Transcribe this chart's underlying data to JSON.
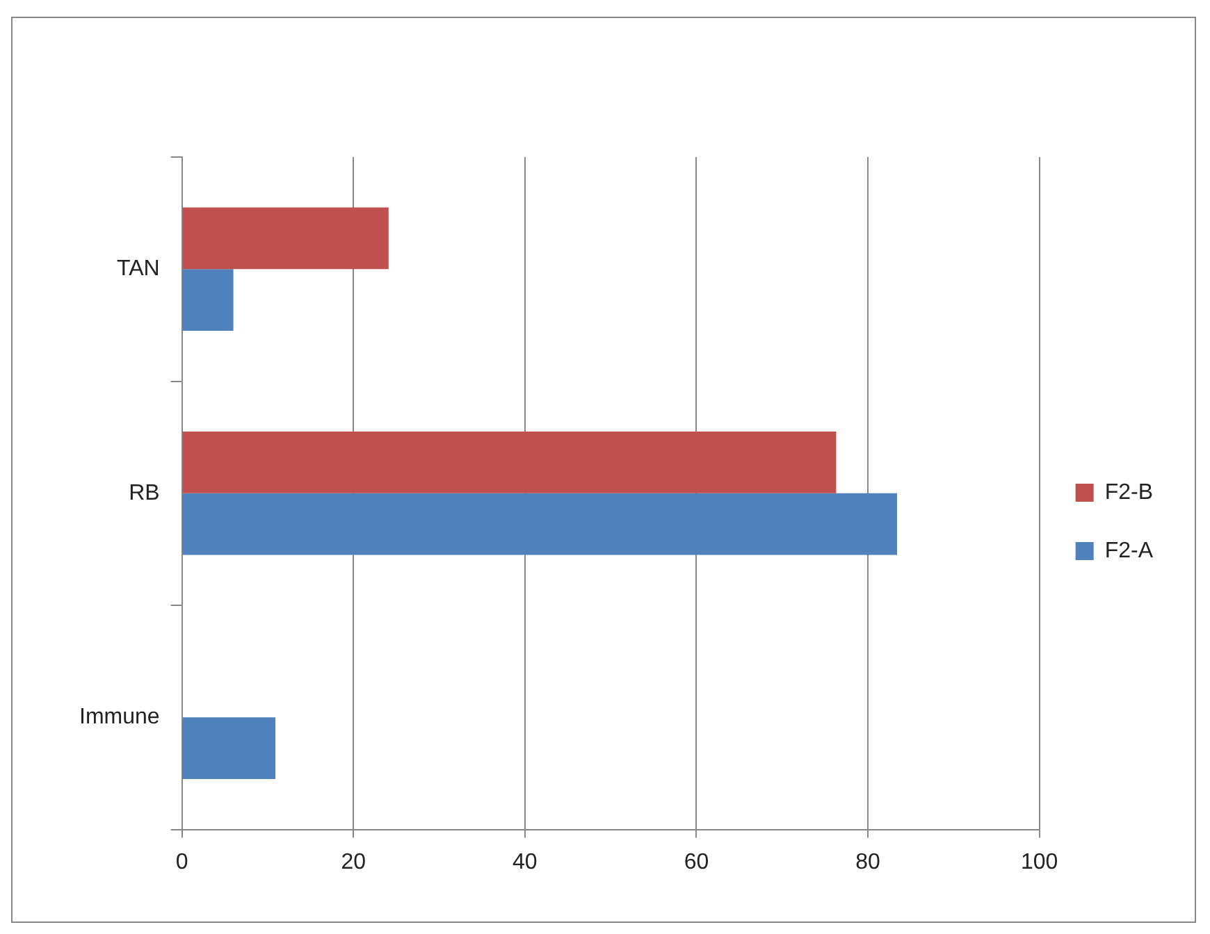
{
  "chart_data": {
    "type": "bar",
    "orientation": "horizontal",
    "categories": [
      "TAN",
      "RB",
      "Immune"
    ],
    "series": [
      {
        "name": "F2-B",
        "color": "#c0504d",
        "values": [
          24.1,
          76.3,
          null
        ]
      },
      {
        "name": "F2-A",
        "color": "#4f81bd",
        "values": [
          6.0,
          83.4,
          10.9
        ]
      }
    ],
    "xlim": [
      0,
      100
    ],
    "xticks": [
      0,
      20,
      40,
      60,
      80,
      100
    ],
    "grid": "x",
    "legend": "right"
  }
}
